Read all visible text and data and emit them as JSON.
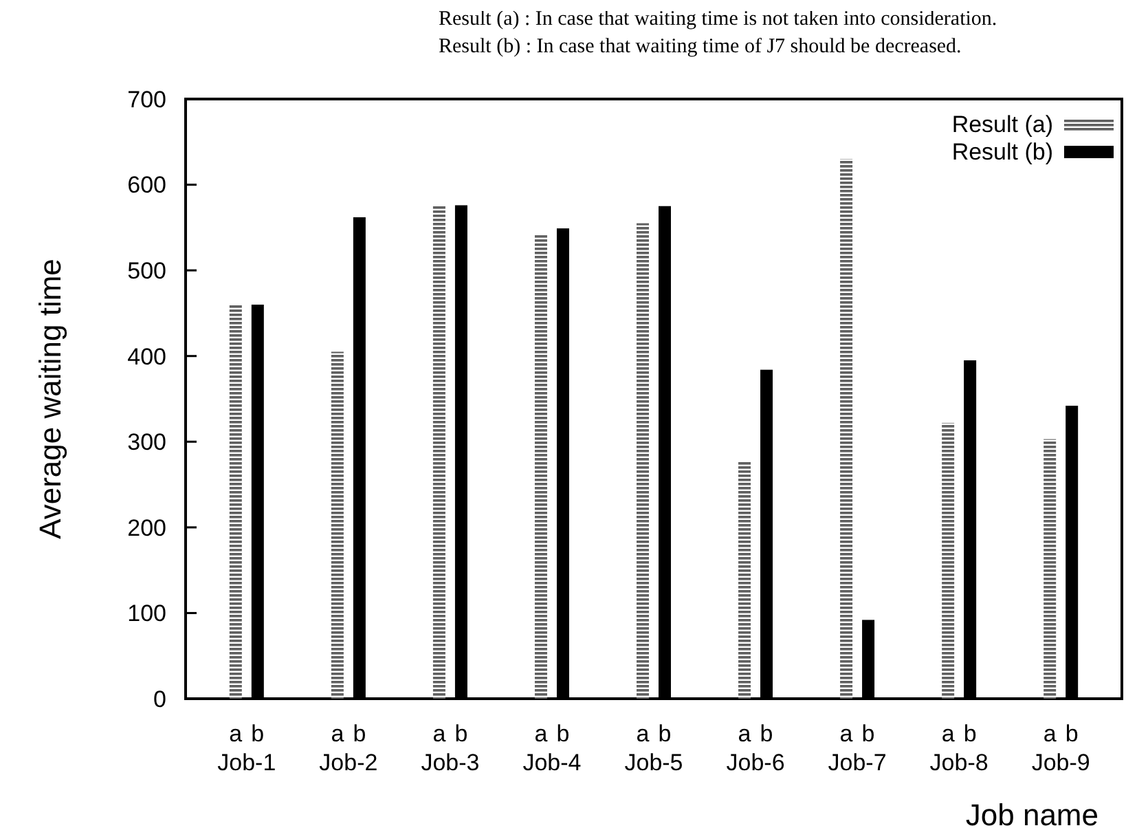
{
  "chart_data": {
    "type": "bar",
    "ylabel": "Average waiting time",
    "xlabel": "Job name",
    "categories": [
      "Job-1",
      "Job-2",
      "Job-3",
      "Job-4",
      "Job-5",
      "Job-6",
      "Job-7",
      "Job-8",
      "Job-9"
    ],
    "series": [
      {
        "name": "Result (a)",
        "color": "#606060",
        "values": [
          460,
          405,
          575,
          541,
          555,
          277,
          630,
          322,
          303
        ]
      },
      {
        "name": "Result (b)",
        "color": "#000000",
        "values": [
          460,
          562,
          576,
          549,
          575,
          384,
          92,
          395,
          342
        ]
      }
    ],
    "ylim": [
      0,
      700
    ],
    "yticks": [
      0,
      100,
      200,
      300,
      400,
      500,
      600,
      700
    ],
    "grid": false,
    "legend": "top right",
    "annotations": [
      "Result (a) : In case that waiting time is not taken into consideration.",
      "Result (b) : In case that waiting time of J7 should be decreased.",
      "a",
      "b",
      "a",
      "b",
      "a",
      "b",
      "a",
      "b",
      "a",
      "b",
      "a",
      "b",
      "a",
      "b",
      "a",
      "b",
      "a",
      "b"
    ]
  }
}
